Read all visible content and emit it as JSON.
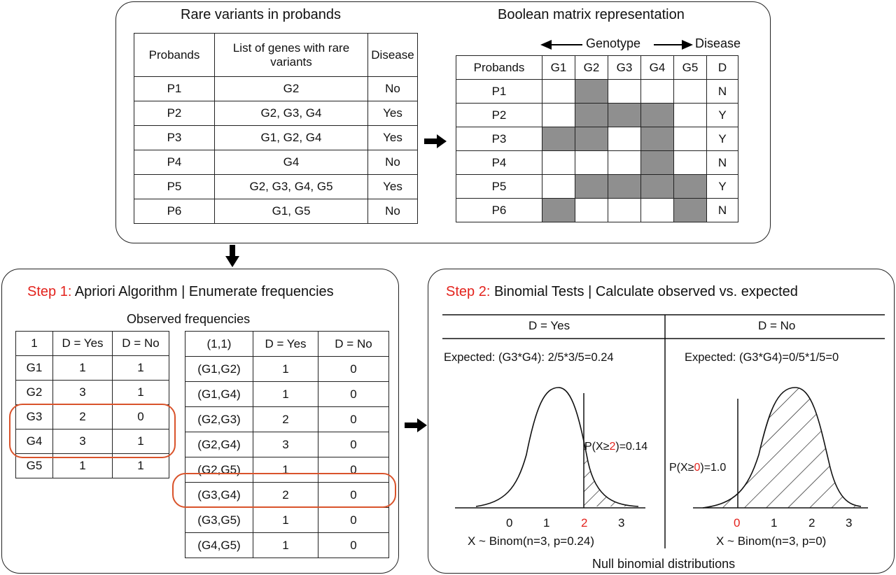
{
  "top_panel": {
    "left_title": "Rare variants in probands",
    "right_title": "Boolean matrix representation",
    "probands_table": {
      "headers": [
        "Probands",
        "List of genes with rare variants",
        "Disease"
      ],
      "rows": [
        [
          "P1",
          "G2",
          "No"
        ],
        [
          "P2",
          "G2, G3, G4",
          "Yes"
        ],
        [
          "P3",
          "G1, G2, G4",
          "Yes"
        ],
        [
          "P4",
          "G4",
          "No"
        ],
        [
          "P5",
          "G2, G3, G4, G5",
          "Yes"
        ],
        [
          "P6",
          "G1, G5",
          "No"
        ]
      ]
    },
    "matrix": {
      "genotype_label": "Genotype",
      "disease_label": "Disease",
      "headers": [
        "Probands",
        "G1",
        "G2",
        "G3",
        "G4",
        "G5",
        "D"
      ],
      "rows": [
        {
          "proband": "P1",
          "cells": [
            0,
            1,
            0,
            0,
            0
          ],
          "d": "N"
        },
        {
          "proband": "P2",
          "cells": [
            0,
            1,
            1,
            1,
            0
          ],
          "d": "Y"
        },
        {
          "proband": "P3",
          "cells": [
            1,
            1,
            0,
            1,
            0
          ],
          "d": "Y"
        },
        {
          "proband": "P4",
          "cells": [
            0,
            0,
            0,
            1,
            0
          ],
          "d": "N"
        },
        {
          "proband": "P5",
          "cells": [
            0,
            1,
            1,
            1,
            1
          ],
          "d": "Y"
        },
        {
          "proband": "P6",
          "cells": [
            1,
            0,
            0,
            0,
            1
          ],
          "d": "N"
        }
      ]
    }
  },
  "step1": {
    "step_label": "Step 1:",
    "title": "Apriori Algorithm | Enumerate frequencies",
    "subtitle": "Observed frequencies",
    "single_table": {
      "headers": [
        "1",
        "D = Yes",
        "D = No"
      ],
      "rows": [
        [
          "G1",
          "1",
          "1"
        ],
        [
          "G2",
          "3",
          "1"
        ],
        [
          "G3",
          "2",
          "0"
        ],
        [
          "G4",
          "3",
          "1"
        ],
        [
          "G5",
          "1",
          "1"
        ]
      ]
    },
    "pair_table": {
      "headers": [
        "(1,1)",
        "D = Yes",
        "D = No"
      ],
      "rows": [
        [
          "(G1,G2)",
          "1",
          "0"
        ],
        [
          "(G1,G4)",
          "1",
          "0"
        ],
        [
          "(G2,G3)",
          "2",
          "0"
        ],
        [
          "(G2,G4)",
          "3",
          "0"
        ],
        [
          "(G2,G5)",
          "1",
          "0"
        ],
        [
          "(G3,G4)",
          "2",
          "0"
        ],
        [
          "(G3,G5)",
          "1",
          "0"
        ],
        [
          "(G4,G5)",
          "1",
          "0"
        ]
      ]
    }
  },
  "step2": {
    "step_label": "Step 2:",
    "title": "Binomial Tests | Calculate observed vs. expected",
    "yes": {
      "header": "D = Yes",
      "expected": "Expected: (G3*G4): 2/5*3/5=0.24",
      "p_prefix": "P(X≥",
      "p_obs": "2",
      "p_suffix": ")=0.14",
      "ticks": [
        "0",
        "1",
        "2",
        "3"
      ],
      "highlight_tick": "2",
      "dist": "X ~ Binom(n=3, p=0.24)"
    },
    "no": {
      "header": "D = No",
      "expected": "Expected: (G3*G4)=0/5*1/5=0",
      "p_prefix": "P(X≥",
      "p_obs": "0",
      "p_suffix": ")=1.0",
      "ticks": [
        "0",
        "1",
        "2",
        "3"
      ],
      "highlight_tick": "0",
      "dist": "X ~ Binom(n=3, p=0)"
    },
    "footer": "Null binomial distributions"
  },
  "colors": {
    "highlight_red": "#e3231d",
    "circle_orange": "#d9532b",
    "shade_gray": "#8f8f8f"
  }
}
